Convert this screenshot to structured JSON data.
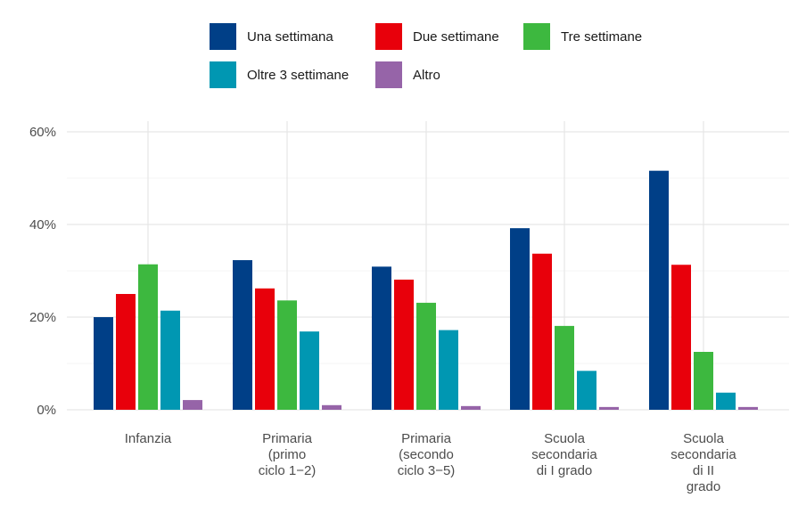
{
  "chart_data": {
    "type": "bar",
    "categories": [
      [
        "Infanzia"
      ],
      [
        "Primaria",
        "(primo",
        "ciclo 1−2)"
      ],
      [
        "Primaria",
        "(secondo",
        "ciclo 3−5)"
      ],
      [
        "Scuola",
        "secondaria",
        "di I grado"
      ],
      [
        "Scuola",
        "secondaria",
        "di II",
        "grado"
      ]
    ],
    "series": [
      {
        "name": "Una settimana",
        "color": "#003f87",
        "values": [
          20.0,
          32.3,
          30.9,
          39.2,
          51.6
        ]
      },
      {
        "name": "Due settimane",
        "color": "#e8000b",
        "values": [
          25.0,
          26.2,
          28.1,
          33.7,
          31.3
        ]
      },
      {
        "name": "Tre settimane",
        "color": "#3db83f",
        "values": [
          31.4,
          23.6,
          23.1,
          18.1,
          12.5
        ]
      },
      {
        "name": "Oltre 3 settimane",
        "color": "#0097b2",
        "values": [
          21.4,
          16.9,
          17.2,
          8.4,
          3.7
        ]
      },
      {
        "name": "Altro",
        "color": "#9664a8",
        "values": [
          2.1,
          1.0,
          0.8,
          0.6,
          0.6
        ]
      }
    ],
    "ylim": [
      0,
      60
    ],
    "yticks": [
      "0%",
      "20%",
      "40%",
      "60%"
    ],
    "grid": true,
    "legend_position": "top"
  }
}
